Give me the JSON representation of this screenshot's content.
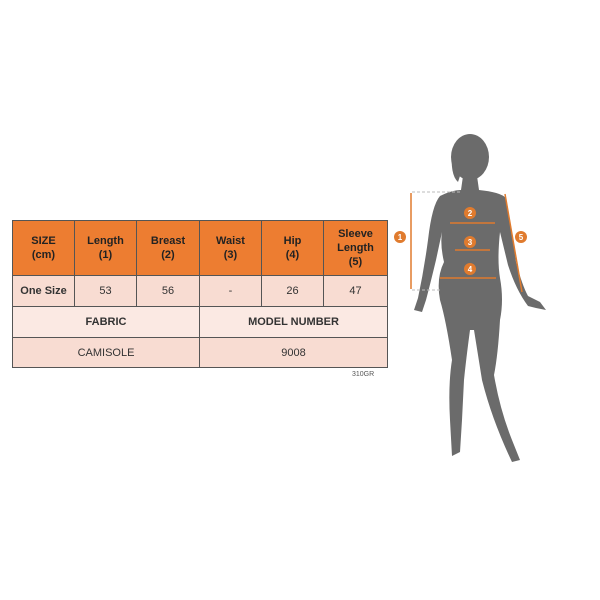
{
  "size_chart": {
    "headers": [
      "SIZE (cm)",
      "Length (1)",
      "Breast (2)",
      "Waist (3)",
      "Hip (4)",
      "Sleeve Length (5)"
    ],
    "header_lines": [
      [
        "SIZE",
        "(cm)"
      ],
      [
        "Length",
        "(1)"
      ],
      [
        "Breast",
        "(2)"
      ],
      [
        "Waist",
        "(3)"
      ],
      [
        "Hip",
        "(4)"
      ],
      [
        "Sleeve",
        "Length",
        "(5)"
      ]
    ],
    "row": [
      "One Size",
      "53",
      "56",
      "-",
      "26",
      "47"
    ],
    "fabric_label": "FABRIC",
    "model_label": "MODEL NUMBER",
    "fabric_value": "CAMISOLE",
    "model_value": "9008",
    "code": "310GR"
  },
  "figure": {
    "markers": [
      "1",
      "2",
      "3",
      "4",
      "5"
    ],
    "accent_color": "#e07b2e",
    "silhouette_color": "#6b6b6b"
  },
  "colors": {
    "header": "#ed7d31",
    "row": "#f8dcd2",
    "row_light": "#fbe9e3"
  }
}
